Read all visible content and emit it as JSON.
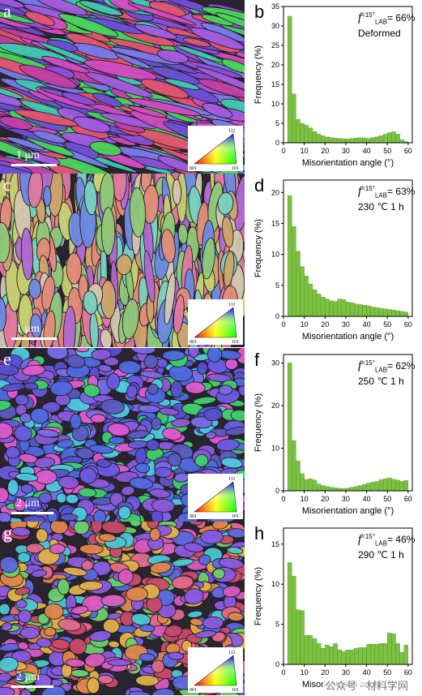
{
  "panels": [
    {
      "map_letter": "a",
      "scale_text": "1 μm",
      "palette": [
        "#8a4fd8",
        "#a35be0",
        "#6b4fd4",
        "#d34cc0",
        "#49d35a",
        "#3fc8b0",
        "#e2556f",
        "#c23fa4",
        "#7b7be8"
      ],
      "chart_letter": "b",
      "f_symbol": "f",
      "f_sub": "LAB",
      "f_sup": "<15°",
      "f_value": "= 66%",
      "condition": "Deformed"
    },
    {
      "map_letter": "c",
      "scale_text": "1 μm",
      "palette": [
        "#e38b7a",
        "#d0a46a",
        "#c8d070",
        "#8fc87a",
        "#b06ad0",
        "#6e8ae0",
        "#e07aa0",
        "#d4c8b0",
        "#7ad0c0"
      ],
      "chart_letter": "d",
      "f_symbol": "f",
      "f_sub": "LAB",
      "f_sup": "<15°",
      "f_value": "= 63%",
      "condition": "230 ℃ 1 h"
    },
    {
      "map_letter": "e",
      "scale_text": "2 μm",
      "palette": [
        "#5a4fd0",
        "#6a5ae0",
        "#4f6ae0",
        "#8a5ad8",
        "#3fd06a",
        "#e05ad0",
        "#4fc8e0",
        "#7a6ae8",
        "#5a5ac0"
      ],
      "chart_letter": "f",
      "f_symbol": "f",
      "f_sub": "LAB",
      "f_sup": "<15°",
      "f_value": "= 62%",
      "condition": "250 ℃ 1 h"
    },
    {
      "map_letter": "g",
      "scale_text": "2 μm",
      "palette": [
        "#e0864a",
        "#d85ac0",
        "#5a6ae0",
        "#e0b04a",
        "#6ad06a",
        "#c84a6a",
        "#8a5ae0",
        "#e06a8a",
        "#4ac8d0"
      ],
      "chart_letter": "h",
      "f_symbol": "f",
      "f_sub": "LAB",
      "f_sup": "<15°",
      "f_value": "= 46%",
      "condition": "290 ℃ 1 h"
    }
  ],
  "ipf_labels": {
    "top": "111",
    "left": "001",
    "right": "101"
  },
  "bar_color": "#7cc242",
  "bar_edge": "#4f8f1f",
  "watermark": "公众号 · 材料学网",
  "chart_data": [
    {
      "type": "bar",
      "xlabel": "Misorientation angle (°)",
      "ylabel": "Frequency (%)",
      "xlim": [
        0,
        62
      ],
      "ylim": [
        0,
        35
      ],
      "xticks": [
        0,
        10,
        20,
        30,
        40,
        50,
        60
      ],
      "yticks": [
        0,
        5,
        10,
        15,
        20,
        25,
        30,
        35
      ],
      "bin_width": 2,
      "x": [
        3,
        5,
        7,
        9,
        11,
        13,
        15,
        17,
        19,
        21,
        23,
        25,
        27,
        29,
        31,
        33,
        35,
        37,
        39,
        41,
        43,
        45,
        47,
        49,
        51,
        53,
        55,
        57,
        59
      ],
      "values": [
        32.5,
        12.5,
        6.0,
        5.0,
        4.5,
        3.8,
        2.9,
        2.2,
        1.8,
        1.5,
        1.3,
        1.2,
        1.1,
        1.0,
        1.0,
        1.1,
        1.2,
        1.3,
        1.2,
        1.1,
        1.3,
        1.5,
        1.8,
        2.2,
        2.6,
        2.8,
        2.2,
        0.8,
        0.3
      ]
    },
    {
      "type": "bar",
      "xlabel": "Misorientation angle (°)",
      "ylabel": "Frequency (%)",
      "xlim": [
        0,
        62
      ],
      "ylim": [
        0,
        22
      ],
      "xticks": [
        0,
        10,
        20,
        30,
        40,
        50,
        60
      ],
      "yticks": [
        0,
        5,
        10,
        15,
        20
      ],
      "bin_width": 2,
      "x": [
        3,
        5,
        7,
        9,
        11,
        13,
        15,
        17,
        19,
        21,
        23,
        25,
        27,
        29,
        31,
        33,
        35,
        37,
        39,
        41,
        43,
        45,
        47,
        49,
        51,
        53,
        55,
        57,
        59
      ],
      "values": [
        19.5,
        14.5,
        10.5,
        8.0,
        6.5,
        5.2,
        4.3,
        3.6,
        3.1,
        2.8,
        2.5,
        2.4,
        2.8,
        2.7,
        2.3,
        2.2,
        2.0,
        1.9,
        1.8,
        1.7,
        1.5,
        1.4,
        1.3,
        1.2,
        1.1,
        1.0,
        0.9,
        0.8,
        0.7
      ]
    },
    {
      "type": "bar",
      "xlabel": "Misorientation angle (°)",
      "ylabel": "Frequency (%)",
      "xlim": [
        0,
        62
      ],
      "ylim": [
        0,
        32
      ],
      "xticks": [
        0,
        10,
        20,
        30,
        40,
        50,
        60
      ],
      "yticks": [
        0,
        10,
        20,
        30
      ],
      "bin_width": 2,
      "x": [
        3,
        5,
        7,
        9,
        11,
        13,
        15,
        17,
        19,
        21,
        23,
        25,
        27,
        29,
        31,
        33,
        35,
        37,
        39,
        41,
        43,
        45,
        47,
        49,
        51,
        53,
        55,
        57,
        59
      ],
      "values": [
        30.0,
        11.8,
        7.0,
        4.0,
        2.6,
        2.8,
        2.5,
        1.6,
        1.2,
        1.0,
        0.8,
        0.7,
        0.6,
        0.5,
        0.6,
        0.8,
        1.0,
        1.2,
        1.5,
        1.8,
        2.0,
        2.2,
        2.6,
        2.8,
        3.0,
        2.7,
        2.5,
        2.2,
        2.4
      ]
    },
    {
      "type": "bar",
      "xlabel": "Misorientation angle (°)",
      "ylabel": "Frequency (%)",
      "xlim": [
        0,
        62
      ],
      "ylim": [
        0,
        17
      ],
      "xticks": [
        0,
        10,
        20,
        30,
        40,
        50,
        60
      ],
      "yticks": [
        0,
        5,
        10,
        15
      ],
      "bin_width": 2,
      "x": [
        3,
        5,
        7,
        9,
        11,
        13,
        15,
        17,
        19,
        21,
        23,
        25,
        27,
        29,
        31,
        33,
        35,
        37,
        39,
        41,
        43,
        45,
        47,
        49,
        51,
        53,
        55,
        57,
        59
      ],
      "values": [
        12.7,
        11.0,
        6.8,
        6.7,
        3.6,
        3.6,
        3.2,
        2.6,
        2.0,
        2.4,
        2.2,
        2.6,
        1.8,
        1.6,
        1.8,
        1.8,
        2.0,
        2.1,
        2.1,
        2.5,
        2.5,
        2.5,
        2.6,
        2.6,
        3.9,
        3.8,
        2.6,
        1.5,
        2.4
      ]
    }
  ]
}
